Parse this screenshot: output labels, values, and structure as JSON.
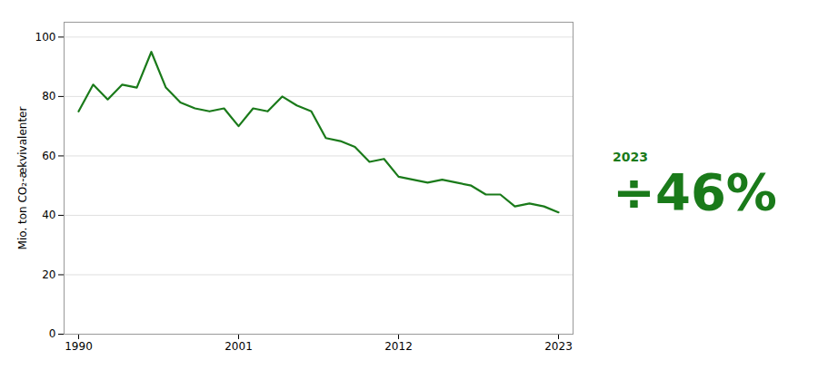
{
  "chart_data": {
    "type": "line",
    "ylabel": "Mio. ton CO₂-ækvivalenter",
    "x": [
      1990,
      1991,
      1992,
      1993,
      1994,
      1995,
      1996,
      1997,
      1998,
      1999,
      2000,
      2001,
      2002,
      2003,
      2004,
      2005,
      2006,
      2007,
      2008,
      2009,
      2010,
      2011,
      2012,
      2013,
      2014,
      2015,
      2016,
      2017,
      2018,
      2019,
      2020,
      2021,
      2022,
      2023
    ],
    "values": [
      75,
      84,
      79,
      84,
      83,
      95,
      83,
      78,
      76,
      75,
      76,
      70,
      76,
      75,
      80,
      77,
      75,
      66,
      65,
      63,
      58,
      59,
      53,
      52,
      51,
      52,
      51,
      50,
      47,
      47,
      43,
      44,
      43,
      41
    ],
    "color": "#1a7a1a",
    "xlim": [
      1989,
      2024
    ],
    "xticks": [
      1990,
      2001,
      2012,
      2023
    ],
    "ylim": [
      0,
      105
    ],
    "yticks": [
      0,
      20,
      40,
      60,
      80,
      100
    ],
    "grid": true,
    "annotations": [
      "2023",
      "÷46%"
    ]
  }
}
